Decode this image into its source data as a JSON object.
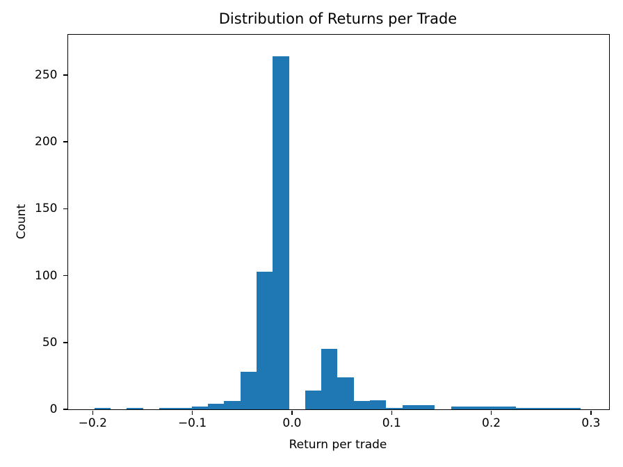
{
  "chart_data": {
    "type": "bar",
    "subtype": "histogram",
    "title": "Distribution of Returns per Trade",
    "xlabel": "Return per trade",
    "ylabel": "Count",
    "bar_color": "#1f77b4",
    "text_color": "#000000",
    "background_color": "#ffffff",
    "grid": false,
    "legend": null,
    "bin_start": -0.1983,
    "bin_width": 0.01627,
    "counts": [
      1,
      0,
      1,
      0,
      1,
      1,
      2,
      4,
      6,
      28,
      103,
      264,
      0,
      14,
      45,
      24,
      6,
      7,
      1,
      3,
      3,
      0,
      2,
      2,
      2,
      2,
      1,
      1,
      1,
      1
    ],
    "xlim": [
      -0.2246,
      0.3182
    ],
    "ylim": [
      0,
      280
    ],
    "x_ticks": [
      {
        "value": -0.2,
        "label": "−0.2"
      },
      {
        "value": -0.1,
        "label": "−0.1"
      },
      {
        "value": 0.0,
        "label": "0.0"
      },
      {
        "value": 0.1,
        "label": "0.1"
      },
      {
        "value": 0.2,
        "label": "0.2"
      },
      {
        "value": 0.3,
        "label": "0.3"
      }
    ],
    "y_ticks": [
      {
        "value": 0,
        "label": "0"
      },
      {
        "value": 50,
        "label": "50"
      },
      {
        "value": 100,
        "label": "100"
      },
      {
        "value": 150,
        "label": "150"
      },
      {
        "value": 200,
        "label": "200"
      },
      {
        "value": 250,
        "label": "250"
      }
    ]
  }
}
